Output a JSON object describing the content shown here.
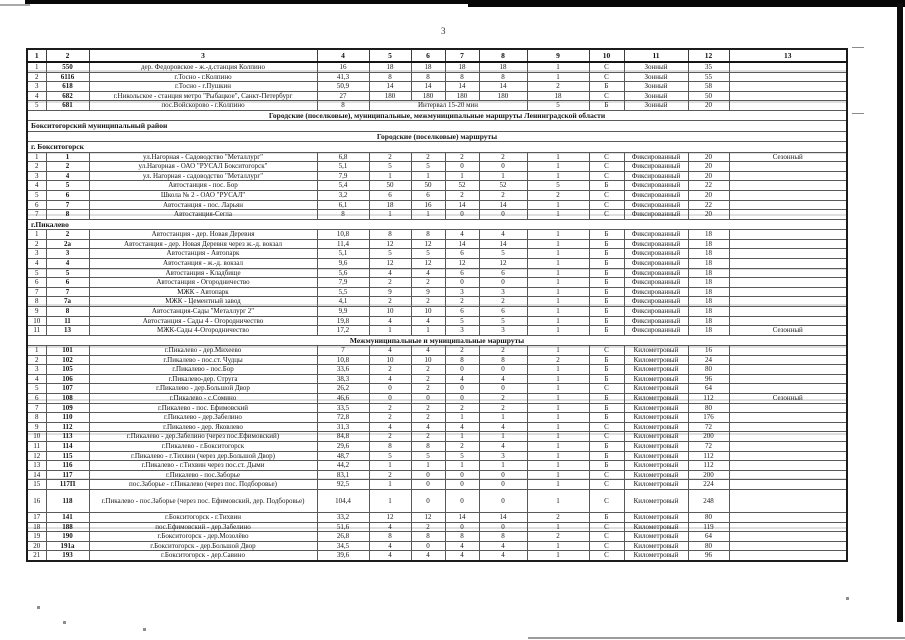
{
  "page_number": "3",
  "table": {
    "columns": [
      "1",
      "2",
      "3",
      "4",
      "5",
      "6",
      "7",
      "8",
      "9",
      "10",
      "11",
      "12",
      "13"
    ],
    "rows": [
      [
        "1",
        "550",
        "дер. Федоровское - ж.-д.станция Колпино",
        "16",
        "18",
        "18",
        "18",
        "18",
        "1",
        "С",
        "Зонный",
        "35",
        ""
      ],
      [
        "2",
        "6116",
        "г.Тосно - г.Колпино",
        "41,3",
        "8",
        "8",
        "8",
        "8",
        "1",
        "С",
        "Зонный",
        "55",
        ""
      ],
      [
        "3",
        "618",
        "г.Тосно - г.Пушкин",
        "50,9",
        "14",
        "14",
        "14",
        "14",
        "2",
        "Б",
        "Зонный",
        "58",
        ""
      ],
      [
        "4",
        "682",
        "г.Никольское - станция метро \"Рыбацкое\", Санкт-Петербург",
        "27",
        "180",
        "180",
        "180",
        "180",
        "18",
        "С",
        "Зонный",
        "50",
        ""
      ],
      [
        "5",
        "681",
        "пос.Войскорово - г.Колпино",
        "8",
        {
          "v": "Интервал 15-20 мин",
          "c": 4
        },
        "5",
        "Б",
        "Зонный",
        "20",
        ""
      ],
      {
        "section": "Городские (поселковые), муниципальные, межмуниципальные  маршруты Ленинградской области",
        "align": "center"
      },
      {
        "section": "Бокситогорский муниципальный район",
        "align": "left"
      },
      {
        "section": "Городские (поселковые) маршруты",
        "align": "center"
      },
      {
        "section": "г. Бокситогорск",
        "align": "left"
      },
      [
        "1",
        "1",
        "ул.Нагорная - Садоводство \"Металлург\"",
        "6,8",
        "2",
        "2",
        "2",
        "2",
        "1",
        "С",
        "Фиксированный",
        "20",
        "Сезонный"
      ],
      [
        "2",
        "2",
        "ул.Нагорная - ОАО \"РУСАЛ Бокситогорск\"",
        "5,1",
        "5",
        "5",
        "0",
        "0",
        "1",
        "С",
        "Фиксированный",
        "20",
        ""
      ],
      [
        "3",
        "4",
        "ул. Нагорная - садоводство \"Металлург\"",
        "7,9",
        "1",
        "1",
        "1",
        "1",
        "1",
        "С",
        "Фиксированный",
        "20",
        ""
      ],
      [
        "4",
        "5",
        "Автостанция - пос. Бор",
        "5,4",
        "50",
        "50",
        "52",
        "52",
        "5",
        "Б",
        "Фиксированный",
        "22",
        ""
      ],
      [
        "5",
        "6",
        "Школа № 2 - ОАО \"РУСАЛ\"",
        "3,2",
        "6",
        "6",
        "2",
        "2",
        "2",
        "С",
        "Фиксированный",
        "20",
        ""
      ],
      [
        "6",
        "7",
        "Автостанция - пос. Ларьян",
        "6,1",
        "18",
        "16",
        "14",
        "14",
        "1",
        "С",
        "Фиксированный",
        "22",
        ""
      ],
      [
        "7",
        "8",
        "Автостанция-Сегла",
        "8",
        "1",
        "1",
        "0",
        "0",
        "1",
        "С",
        "Фиксированный",
        "20",
        ""
      ],
      {
        "section": "г.Пикалево",
        "align": "left"
      },
      [
        "1",
        "2",
        "Автостанция - дер. Новая Деревня",
        "10,8",
        "8",
        "8",
        "4",
        "4",
        "1",
        "Б",
        "Фиксированный",
        "18",
        ""
      ],
      [
        "2",
        "2а",
        "Автостанция - дер. Новая Деревня через ж.-д. вокзал",
        "11,4",
        "12",
        "12",
        "14",
        "14",
        "1",
        "Б",
        "Фиксированный",
        "18",
        ""
      ],
      [
        "3",
        "3",
        "Автостанция - Автопарк",
        "5,1",
        "5",
        "5",
        "6",
        "5",
        "1",
        "Б",
        "Фиксированный",
        "18",
        ""
      ],
      [
        "4",
        "4",
        "Автостанция - ж.-д. вокзал",
        "9,6",
        "12",
        "12",
        "12",
        "12",
        "1",
        "Б",
        "Фиксированный",
        "18",
        ""
      ],
      [
        "5",
        "5",
        "Автостанция - Кладбище",
        "5,6",
        "4",
        "4",
        "6",
        "6",
        "1",
        "Б",
        "Фиксированный",
        "18",
        ""
      ],
      [
        "6",
        "6",
        "Автостанция - Огородничество",
        "7,9",
        "2",
        "2",
        "0",
        "0",
        "1",
        "Б",
        "Фиксированный",
        "18",
        ""
      ],
      [
        "7",
        "7",
        "МЖК - Автопарк",
        "5,5",
        "9",
        "9",
        "3",
        "3",
        "1",
        "Б",
        "Фиксированный",
        "18",
        ""
      ],
      [
        "8",
        "7а",
        "МЖК - Цементный завод",
        "4,1",
        "2",
        "2",
        "2",
        "2",
        "1",
        "Б",
        "Фиксированный",
        "18",
        ""
      ],
      [
        "9",
        "8",
        "Автостанция-Сады \"Металлург 2\"",
        "9,9",
        "10",
        "10",
        "6",
        "6",
        "1",
        "Б",
        "Фиксированный",
        "18",
        ""
      ],
      [
        "10",
        "11",
        "Автостанция - Сады 4 - Огородничество",
        "19,8",
        "4",
        "4",
        "5",
        "5",
        "1",
        "Б",
        "Фиксированный",
        "18",
        ""
      ],
      [
        "11",
        "13",
        "МЖК-Сады 4-Огородничество",
        "17,2",
        "1",
        "1",
        "3",
        "3",
        "1",
        "Б",
        "Фиксированный",
        "18",
        "Сезонный"
      ],
      {
        "section": "Межмуниципальные  и  муниципальные  маршруты",
        "align": "center"
      },
      [
        "1",
        "101",
        "г.Пикалево - дер.Михеево",
        "7",
        "4",
        "4",
        "2",
        "2",
        "1",
        "С",
        "Километровый",
        "16",
        ""
      ],
      [
        "2",
        "102",
        "г.Пикалево - пос.ст. Чудцы",
        "10,8",
        "10",
        "10",
        "8",
        "8",
        "2",
        "Б",
        "Километровый",
        "24",
        ""
      ],
      [
        "3",
        "105",
        "г.Пикалево - пос.Бор",
        "33,6",
        "2",
        "2",
        "0",
        "0",
        "1",
        "Б",
        "Километровый",
        "80",
        ""
      ],
      [
        "4",
        "106",
        "г.Пикалево-дер. Струга",
        "38,3",
        "4",
        "2",
        "4",
        "4",
        "1",
        "Б",
        "Километровый",
        "96",
        ""
      ],
      [
        "5",
        "107",
        "г.Пикалево - дер.Большой Двор",
        "26,2",
        "0",
        "2",
        "0",
        "0",
        "1",
        "С",
        "Километровый",
        "64",
        ""
      ],
      [
        "6",
        "108",
        "г.Пикалево - с.Сомино",
        "46,6",
        "0",
        "0",
        "0",
        "2",
        "1",
        "Б",
        "Километровый",
        "112",
        "Сезонный"
      ],
      [
        "7",
        "109",
        "г.Пикалево - пос. Ефимовский",
        "33,5",
        "2",
        "2",
        "2",
        "2",
        "1",
        "Б",
        "Километровый",
        "80",
        ""
      ],
      [
        "8",
        "110",
        "г.Пикалево - дер.Забелино",
        "72,8",
        "2",
        "2",
        "1",
        "1",
        "1",
        "Б",
        "Километровый",
        "176",
        ""
      ],
      [
        "9",
        "112",
        "г.Пикалево - дер. Яковлево",
        "31,3",
        "4",
        "4",
        "4",
        "4",
        "1",
        "С",
        "Километровый",
        "72",
        ""
      ],
      [
        "10",
        "113",
        "г.Пикалево - дер.Забелино (через пос.Ефимовский)",
        "84,8",
        "2",
        "2",
        "1",
        "1",
        "1",
        "С",
        "Километровый",
        "200",
        ""
      ],
      [
        "11",
        "114",
        "г.Пикалево - г.Бокситогорск",
        "29,6",
        "8",
        "8",
        "2",
        "4",
        "1",
        "Б",
        "Километровый",
        "72",
        ""
      ],
      [
        "12",
        "115",
        "г.Пикалево - г.Тихвин (через дер.Большой Двор)",
        "48,7",
        "5",
        "5",
        "5",
        "3",
        "1",
        "Б",
        "Километровый",
        "112",
        ""
      ],
      [
        "13",
        "116",
        "г.Пикалево - г.Тихвин через пос.ст. Дыми",
        "44,2",
        "1",
        "1",
        "1",
        "1",
        "1",
        "Б",
        "Километровый",
        "112",
        ""
      ],
      [
        "14",
        "117",
        "г.Пикалево - пос.Заборье",
        "83,1",
        "2",
        "0",
        "0",
        "0",
        "1",
        "С",
        "Километровый",
        "200",
        ""
      ],
      [
        "15",
        "117П",
        "пос.Заборье - г.Пикалево  (через пос. Подборовье)",
        "92,5",
        "1",
        "0",
        "0",
        "0",
        "1",
        "С",
        "Километровый",
        "224",
        ""
      ],
      [
        "16",
        "118",
        "г.Пикалево - пос.Заборье (через пос. Ефимовский, дер.\nПодборовье)",
        "104,4",
        "1",
        "0",
        "0",
        "0",
        "1",
        "С",
        "Километровый",
        "248",
        ""
      ],
      [
        "17",
        "141",
        "г.Бокситогорск - г.Тихвин",
        "33,2",
        "12",
        "12",
        "14",
        "14",
        "2",
        "Б",
        "Километровый",
        "80",
        ""
      ],
      [
        "18",
        "188",
        "пос.Ефимовский - дер.Забелино",
        "51,6",
        "4",
        "2",
        "0",
        "0",
        "1",
        "С",
        "Километровый",
        "119",
        ""
      ],
      [
        "19",
        "190",
        "г.Бокситогорск - дер.Мозолёво",
        "26,8",
        "8",
        "8",
        "8",
        "8",
        "2",
        "С",
        "Километровый",
        "64",
        ""
      ],
      [
        "20",
        "191а",
        "г.Бокситогорск - дер.Большой Двор",
        "34,5",
        "4",
        "0",
        "4",
        "4",
        "1",
        "С",
        "Километровый",
        "80",
        ""
      ],
      [
        "21",
        "193",
        "г.Бокситогорск - дер.Савино",
        "39,6",
        "4",
        "4",
        "4",
        "4",
        "1",
        "С",
        "Километровый",
        "96",
        ""
      ]
    ]
  }
}
